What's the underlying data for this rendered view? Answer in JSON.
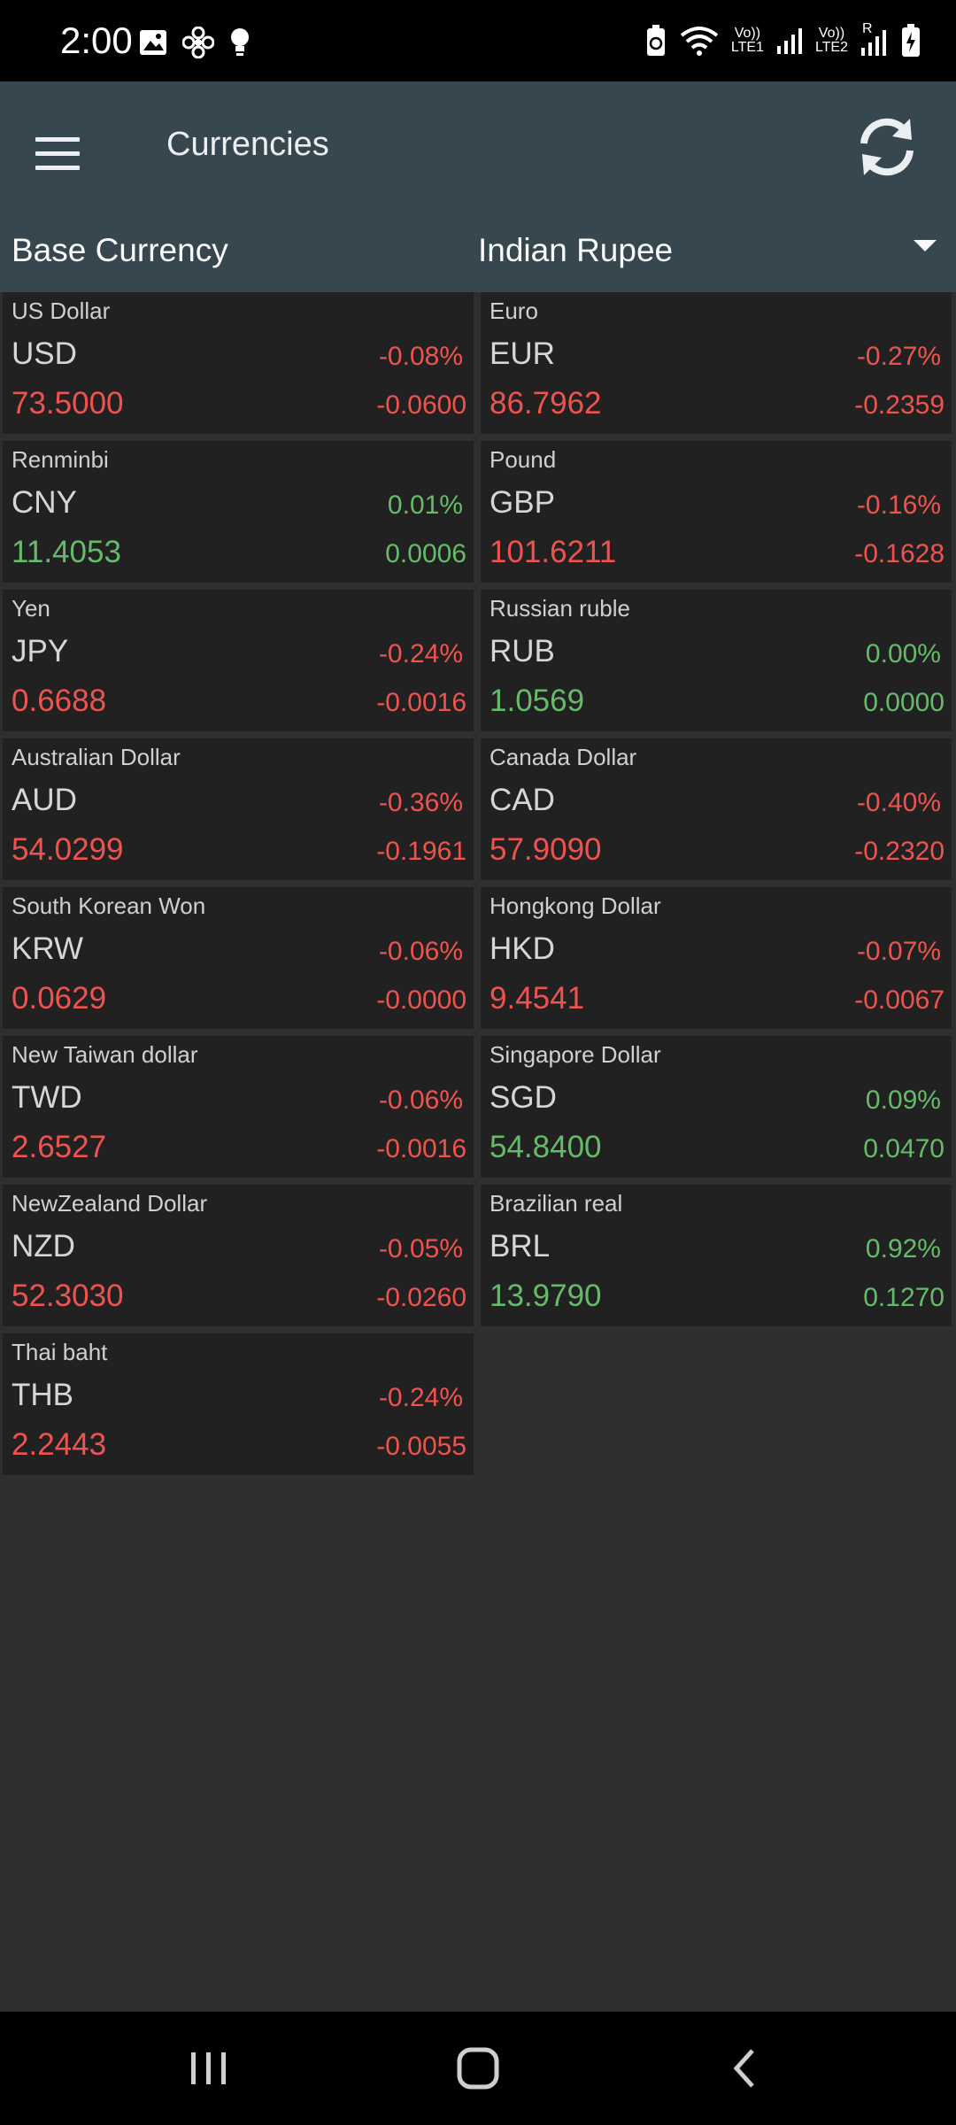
{
  "status": {
    "time": "2:00",
    "network_label_1": "LTE1",
    "network_label_2": "LTE2",
    "volte_1": "Vo))",
    "volte_2": "Vo))",
    "roaming": "R"
  },
  "toolbar": {
    "title": "Currencies",
    "menu_icon": "hamburger-menu-icon",
    "refresh_icon": "refresh-icon"
  },
  "base": {
    "label": "Base Currency",
    "selected": "Indian Rupee"
  },
  "colors": {
    "toolbar": "#37474f",
    "card": "#212121",
    "negative": "#ef5350",
    "positive": "#66bb6a"
  },
  "currencies": [
    {
      "name": "US Dollar",
      "code": "USD",
      "pct": "-0.08%",
      "rate": "73.5000",
      "diff": "-0.0600",
      "trend": "neg"
    },
    {
      "name": "Euro",
      "code": "EUR",
      "pct": "-0.27%",
      "rate": "86.7962",
      "diff": "-0.2359",
      "trend": "neg"
    },
    {
      "name": "Renminbi",
      "code": "CNY",
      "pct": "0.01%",
      "rate": "11.4053",
      "diff": "0.0006",
      "trend": "pos"
    },
    {
      "name": "Pound",
      "code": "GBP",
      "pct": "-0.16%",
      "rate": "101.6211",
      "diff": "-0.1628",
      "trend": "neg"
    },
    {
      "name": "Yen",
      "code": "JPY",
      "pct": "-0.24%",
      "rate": "0.6688",
      "diff": "-0.0016",
      "trend": "neg"
    },
    {
      "name": "Russian ruble",
      "code": "RUB",
      "pct": "0.00%",
      "rate": "1.0569",
      "diff": "0.0000",
      "trend": "pos"
    },
    {
      "name": "Australian Dollar",
      "code": "AUD",
      "pct": "-0.36%",
      "rate": "54.0299",
      "diff": "-0.1961",
      "trend": "neg"
    },
    {
      "name": "Canada Dollar",
      "code": "CAD",
      "pct": "-0.40%",
      "rate": "57.9090",
      "diff": "-0.2320",
      "trend": "neg"
    },
    {
      "name": "South Korean Won",
      "code": "KRW",
      "pct": "-0.06%",
      "rate": "0.0629",
      "diff": "-0.0000",
      "trend": "neg"
    },
    {
      "name": "Hongkong Dollar",
      "code": "HKD",
      "pct": "-0.07%",
      "rate": "9.4541",
      "diff": "-0.0067",
      "trend": "neg"
    },
    {
      "name": "New Taiwan dollar",
      "code": "TWD",
      "pct": "-0.06%",
      "rate": "2.6527",
      "diff": "-0.0016",
      "trend": "neg"
    },
    {
      "name": "Singapore Dollar",
      "code": "SGD",
      "pct": "0.09%",
      "rate": "54.8400",
      "diff": "0.0470",
      "trend": "pos"
    },
    {
      "name": "NewZealand Dollar",
      "code": "NZD",
      "pct": "-0.05%",
      "rate": "52.3030",
      "diff": "-0.0260",
      "trend": "neg"
    },
    {
      "name": "Brazilian real",
      "code": "BRL",
      "pct": "0.92%",
      "rate": "13.9790",
      "diff": "0.1270",
      "trend": "pos"
    },
    {
      "name": "Thai baht",
      "code": "THB",
      "pct": "-0.24%",
      "rate": "2.2443",
      "diff": "-0.0055",
      "trend": "neg"
    }
  ],
  "navbar": {
    "recents_icon": "recent-apps-icon",
    "home_icon": "home-icon",
    "back_icon": "back-icon"
  }
}
